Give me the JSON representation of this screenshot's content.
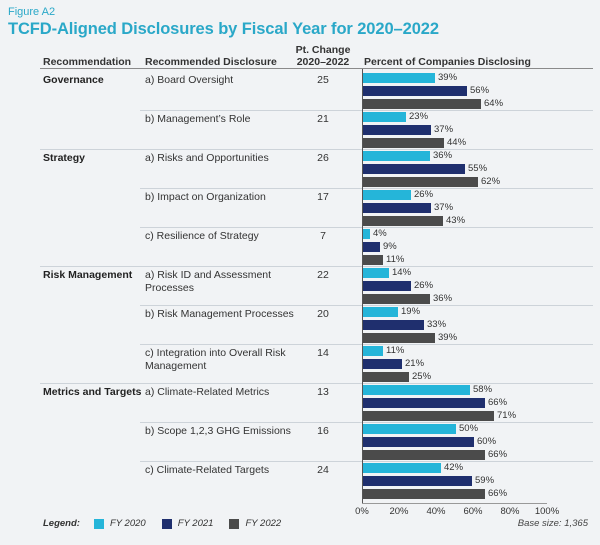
{
  "header": {
    "figure_label": "Figure A2",
    "title": "TCFD-Aligned Disclosures by Fiscal Year for 2020–2022",
    "col_recommendation": "Recommendation",
    "col_disclosure": "Recommended Disclosure",
    "col_change_line1": "Pt. Change",
    "col_change_line2": "2020–2022",
    "col_percent": "Percent of Companies Disclosing"
  },
  "colors": {
    "fy2020": "#25b5d9",
    "fy2021": "#1f2f6e",
    "fy2022": "#4b4b4b"
  },
  "legend": {
    "title": "Legend:",
    "items": [
      "FY 2020",
      "FY 2021",
      "FY 2022"
    ]
  },
  "base_size": "Base size: 1,365",
  "chart_data": {
    "type": "bar",
    "orientation": "horizontal",
    "title": "TCFD-Aligned Disclosures by Fiscal Year for 2020–2022",
    "xlabel": "Percent of Companies Disclosing",
    "xlim": [
      0,
      100
    ],
    "x_ticks": [
      "0%",
      "20%",
      "40%",
      "60%",
      "80%",
      "100%"
    ],
    "series_names": [
      "FY 2020",
      "FY 2021",
      "FY 2022"
    ],
    "groups": [
      {
        "category": "Governance",
        "items": [
          {
            "disclosure": "a) Board Oversight",
            "pt_change": 25,
            "values": [
              39,
              56,
              64
            ]
          },
          {
            "disclosure": "b) Management’s Role",
            "pt_change": 21,
            "values": [
              23,
              37,
              44
            ]
          }
        ]
      },
      {
        "category": "Strategy",
        "items": [
          {
            "disclosure": "a) Risks and Opportunities",
            "pt_change": 26,
            "values": [
              36,
              55,
              62
            ]
          },
          {
            "disclosure": "b) Impact on Organization",
            "pt_change": 17,
            "values": [
              26,
              37,
              43
            ]
          },
          {
            "disclosure": "c) Resilience of Strategy",
            "pt_change": 7,
            "values": [
              4,
              9,
              11
            ]
          }
        ]
      },
      {
        "category": "Risk Management",
        "items": [
          {
            "disclosure": "a) Risk ID and Assessment Processes",
            "pt_change": 22,
            "values": [
              14,
              26,
              36
            ]
          },
          {
            "disclosure": "b) Risk Management Processes",
            "pt_change": 20,
            "values": [
              19,
              33,
              39
            ]
          },
          {
            "disclosure": "c) Integration into Overall Risk Management",
            "pt_change": 14,
            "values": [
              11,
              21,
              25
            ]
          }
        ]
      },
      {
        "category": "Metrics and Targets",
        "items": [
          {
            "disclosure": "a) Climate-Related Metrics",
            "pt_change": 13,
            "values": [
              58,
              66,
              71
            ]
          },
          {
            "disclosure": "b) Scope 1,2,3 GHG Emissions",
            "pt_change": 16,
            "values": [
              50,
              60,
              66
            ]
          },
          {
            "disclosure": "c) Climate-Related Targets",
            "pt_change": 24,
            "values": [
              42,
              59,
              66
            ]
          }
        ]
      }
    ]
  }
}
